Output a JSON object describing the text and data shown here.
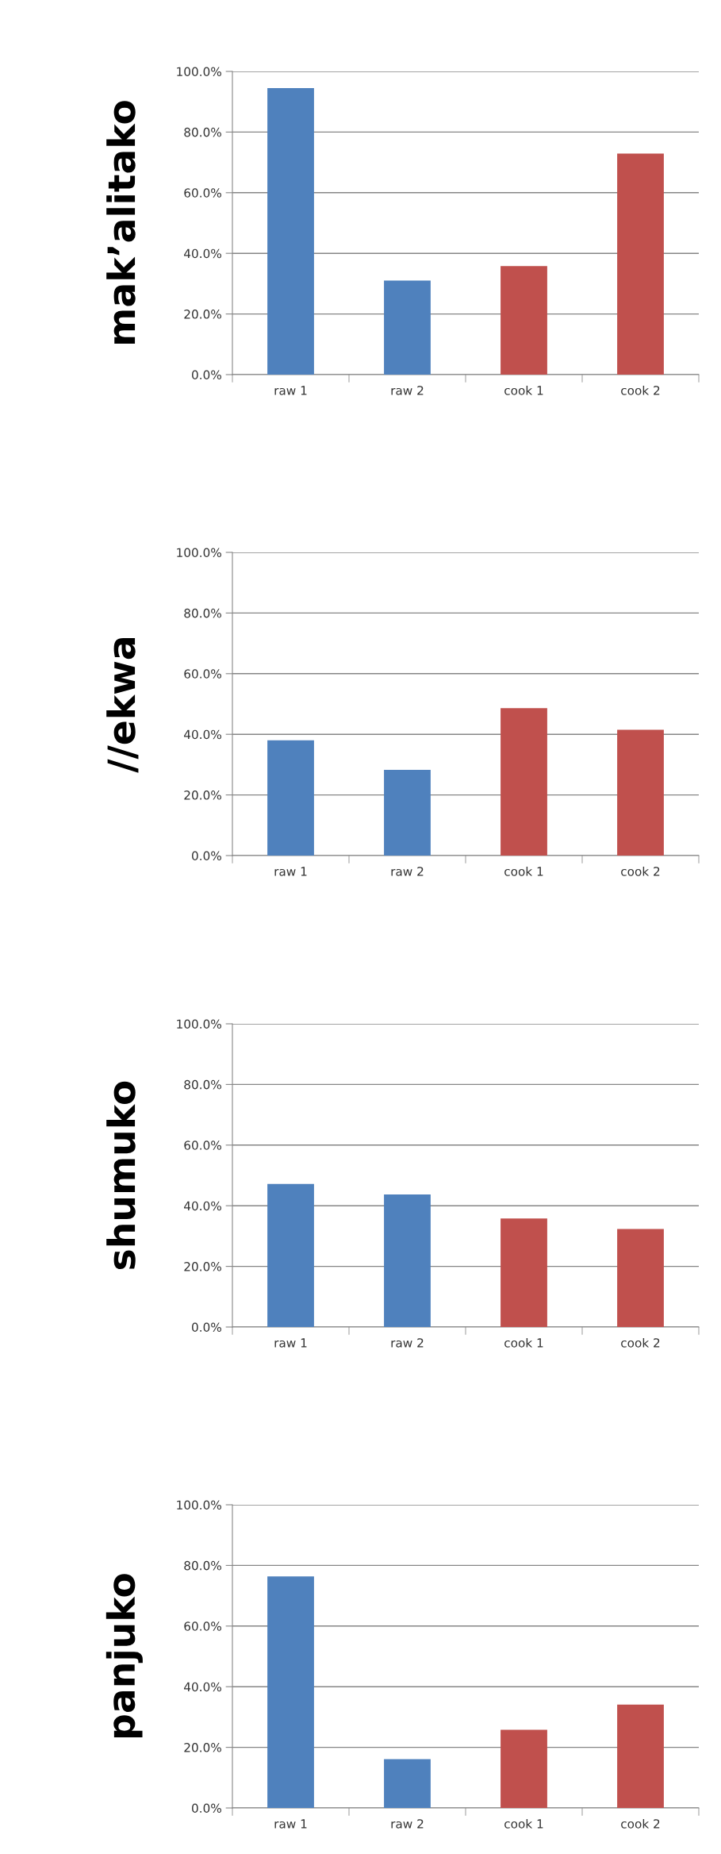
{
  "chart_data": [
    {
      "type": "bar",
      "ylabel": "mak’alitako",
      "categories": [
        "raw 1",
        "raw 2",
        "cook 1",
        "cook 2"
      ],
      "values": [
        94.5,
        31,
        35.8,
        72.9
      ],
      "colors": [
        "#4f81bd",
        "#4f81bd",
        "#c0504d",
        "#c0504d"
      ],
      "ylim": [
        0,
        100
      ],
      "yticks": [
        {
          "value": 0,
          "label": "0.0%"
        },
        {
          "value": 20,
          "label": "20.0%"
        },
        {
          "value": 40,
          "label": "40.0%"
        },
        {
          "value": 60,
          "label": "60.0%"
        },
        {
          "value": 80,
          "label": "80.0%"
        },
        {
          "value": 100,
          "label": "100.0%"
        }
      ],
      "grid": "y"
    },
    {
      "type": "bar",
      "ylabel": "//ekwa",
      "categories": [
        "raw 1",
        "raw 2",
        "cook 1",
        "cook 2"
      ],
      "values": [
        38.0,
        28.3,
        48.6,
        41.5
      ],
      "colors": [
        "#4f81bd",
        "#4f81bd",
        "#c0504d",
        "#c0504d"
      ],
      "ylim": [
        0,
        100
      ],
      "yticks": [
        {
          "value": 0,
          "label": "0.0%"
        },
        {
          "value": 20,
          "label": "20.0%"
        },
        {
          "value": 40,
          "label": "40.0%"
        },
        {
          "value": 60,
          "label": "60.0%"
        },
        {
          "value": 80,
          "label": "80.0%"
        },
        {
          "value": 100,
          "label": "100.0%"
        }
      ],
      "grid": "y"
    },
    {
      "type": "bar",
      "ylabel": "shumuko",
      "categories": [
        "raw 1",
        "raw 2",
        "cook 1",
        "cook 2"
      ],
      "values": [
        47.2,
        43.7,
        35.8,
        32.3
      ],
      "colors": [
        "#4f81bd",
        "#4f81bd",
        "#c0504d",
        "#c0504d"
      ],
      "ylim": [
        0,
        100
      ],
      "yticks": [
        {
          "value": 0,
          "label": "0.0%"
        },
        {
          "value": 20,
          "label": "20.0%"
        },
        {
          "value": 40,
          "label": "40.0%"
        },
        {
          "value": 60,
          "label": "60.0%"
        },
        {
          "value": 80,
          "label": "80.0%"
        },
        {
          "value": 100,
          "label": "100.0%"
        }
      ],
      "grid": "y"
    },
    {
      "type": "bar",
      "ylabel": "panjuko",
      "categories": [
        "raw 1",
        "raw 2",
        "cook 1",
        "cook 2"
      ],
      "values": [
        76.4,
        16.1,
        25.8,
        34.1
      ],
      "colors": [
        "#4f81bd",
        "#4f81bd",
        "#c0504d",
        "#c0504d"
      ],
      "ylim": [
        0,
        100
      ],
      "yticks": [
        {
          "value": 0,
          "label": "0.0%"
        },
        {
          "value": 20,
          "label": "20.0%"
        },
        {
          "value": 40,
          "label": "40.0%"
        },
        {
          "value": 60,
          "label": "60.0%"
        },
        {
          "value": 80,
          "label": "80.0%"
        },
        {
          "value": 100,
          "label": "100.0%"
        }
      ],
      "grid": "y"
    }
  ]
}
